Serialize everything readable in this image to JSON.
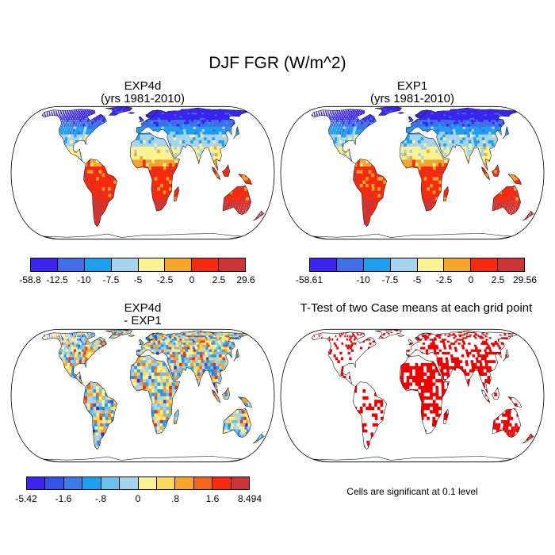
{
  "figure": {
    "title": "DJF FGR (W/m^2)",
    "note": "Cells are significant at 0.1 level"
  },
  "panels": {
    "top_left": {
      "title_line1": "EXP4d",
      "title_line2": "(yrs 1981-2010)"
    },
    "top_right": {
      "title_line1": "EXP1",
      "title_line2": "(yrs 1981-2010)"
    },
    "bottom_left": {
      "title_line1": "EXP4d",
      "title_line2": "- EXP1"
    },
    "bottom_right": {
      "title_line1": "T-Test of two Case means at each grid point"
    }
  },
  "colorbars": {
    "top_left": {
      "colors": [
        "#3b23f0",
        "#3f6ee8",
        "#1ea0ee",
        "#a6d3ee",
        "#fbf291",
        "#f6a52b",
        "#f52a0f",
        "#cd3438"
      ],
      "labels": [
        "-58.8",
        "-12.5",
        "-10",
        "-7.5",
        "-5",
        "-2.5",
        "0",
        "2.5",
        "29.6"
      ]
    },
    "top_right": {
      "colors": [
        "#3b23f0",
        "#3f6ee8",
        "#1ea0ee",
        "#a6d3ee",
        "#fbf291",
        "#f6a52b",
        "#f52a0f",
        "#cd3438"
      ],
      "labels": [
        "-58.61",
        "",
        "-10",
        "-7.5",
        "-5",
        "-2.5",
        "0",
        "2.5",
        "29.56"
      ]
    },
    "bottom_left": {
      "colors": [
        "#3b23f0",
        "#3553e6",
        "#3f7be8",
        "#1ea0ee",
        "#6cc0ee",
        "#a6d3ee",
        "#fbf291",
        "#fad75e",
        "#f6a52b",
        "#f5661a",
        "#f52a0f",
        "#cd3438"
      ],
      "labels": [
        "-5.42",
        "",
        "-1.6",
        "",
        "-.8",
        "",
        "0",
        "",
        ".8",
        "",
        "1.6",
        "",
        "8.494"
      ]
    }
  },
  "colors": {
    "ocean": "#ffffff",
    "coast": "#222222",
    "significant": "#ee0000"
  }
}
